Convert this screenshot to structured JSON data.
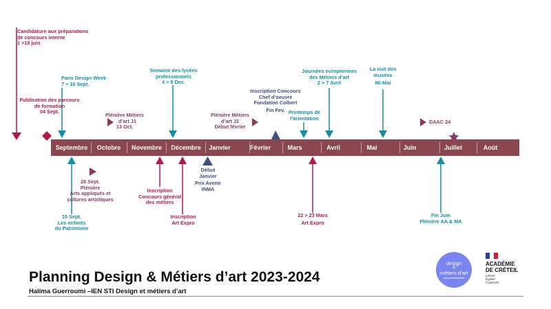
{
  "title": "Planning Design & Métiers d’art 2023-2024",
  "subtitle": "Halima Guerroumi –IEN STI Design et métiers d’art",
  "months": [
    "Septembre",
    "Octobre",
    "Novembre",
    "Décembre",
    "Janvier",
    "Février",
    "Mars",
    "Avril",
    "Mai",
    "Juin",
    "Juillet",
    "Août"
  ],
  "events": {
    "candidature": {
      "l1": "Candidature aux préparations",
      "l2": "de concours interne",
      "l3": "1 >15 juin"
    },
    "publication": {
      "l1": "Publication des parcours",
      "l2": "de formation",
      "l3": "04 Sept."
    },
    "paris_design_week": {
      "l1": "Paris Design Week",
      "l2": "7 > 16 Sept."
    },
    "pleniere_j1": {
      "l1": "Plénière Métiers",
      "l2": "d’art J1",
      "l3": "13 Oct."
    },
    "semaine_lycees": {
      "l1": "Semaine des lycées",
      "l2": "professionnels",
      "l3": "4 > 8 Dec."
    },
    "pleniere_j2": {
      "l1": "Plénière Métiers",
      "l2": "d’art J2",
      "l3": "Début février"
    },
    "inscription_concours": {
      "l1": "Inscription Concours",
      "l2": "Chef d’oeuvre",
      "l3": "Fondation Colbert",
      "l4": "Fin Fev."
    },
    "printemps": {
      "l1": "Printemps de",
      "l2": "l’orientation"
    },
    "journees": {
      "l1": "Journées européennes",
      "l2": "des Métiers d’art",
      "l3": "2 > 7 Avril"
    },
    "nuit_musees": {
      "l1": "La nuit des",
      "l2": "musées",
      "l3": "Mi-Mai"
    },
    "daac": {
      "l1": "DAAC 24"
    },
    "pleniere_arts": {
      "l1": "28 Sept.",
      "l2": "Plénière",
      "l3": "Arts appliqués et",
      "l4": "cultures artistiques"
    },
    "enfants_patrimoine": {
      "l1": "15 Sept.",
      "l2": "Les enfants",
      "l3": "du Patrimoine"
    },
    "concours_general": {
      "l1": "Inscription",
      "l2": "Concours général",
      "l3": "des métiers"
    },
    "inscription_art_expro": {
      "l1": "Inscription",
      "l2": "Art Expro"
    },
    "prix_avenir": {
      "l1": "Début",
      "l2": "Janvier",
      "l3": "Prix Avenir",
      "l4": "INMA"
    },
    "art_expro": {
      "l1": "22 > 23 Mars",
      "l2": "Art Expro"
    },
    "fin_juin": {
      "l1": "Fin Juin",
      "l2": "Plénière AA & MA"
    }
  },
  "logo": {
    "line1": "design",
    "amp": "&",
    "line2": "métiers d’art",
    "tagline": "voie professionnelle"
  },
  "academie": {
    "name_l1": "ACADÉMIE",
    "name_l2": "DE CRÉTEIL",
    "motto_l1": "Liberté",
    "motto_l2": "Égalité",
    "motto_l3": "Fraternité"
  },
  "colors": {
    "bar": "#8b474f",
    "teal": "#1191a5",
    "crimson": "#b5184a",
    "navy": "#3d4f7c",
    "plum": "#8a3a63"
  }
}
